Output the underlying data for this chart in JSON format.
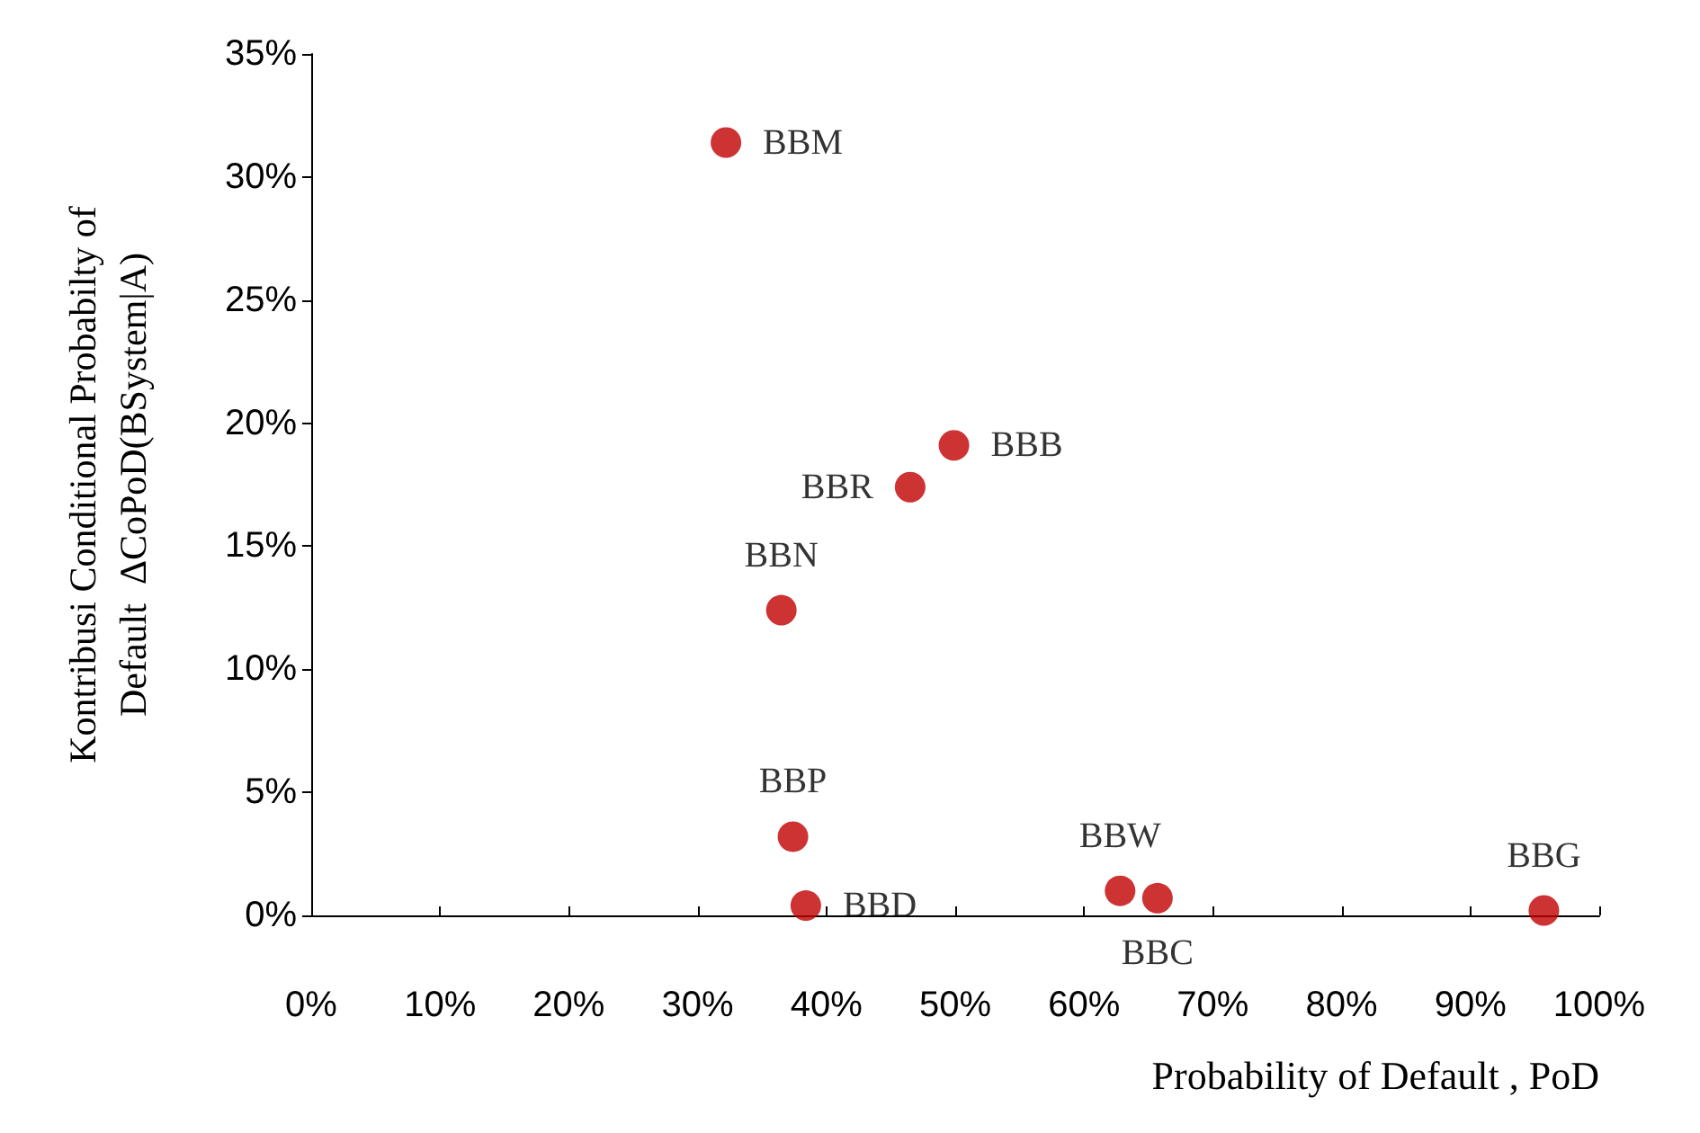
{
  "chart_data": {
    "type": "scatter",
    "xlabel": "Probability of Default , PoD",
    "ylabel": "Kontribusi Conditional Probabilty of\nDefault  ΔCoPoD(BSystem|A)",
    "x": [
      32.2,
      49.9,
      46.5,
      36.5,
      37.4,
      38.4,
      62.8,
      65.7,
      95.7
    ],
    "series": [
      {
        "color": "#c00000",
        "values": [
          31.4,
          19.1,
          17.4,
          12.4,
          3.2,
          0.4,
          1.0,
          0.7,
          0.2
        ]
      }
    ],
    "annotations": [
      {
        "text": "BBM",
        "x": 32.2,
        "y": 31.4
      },
      {
        "text": "BBB",
        "x": 49.9,
        "y": 19.1
      },
      {
        "text": "BBR",
        "x": 46.5,
        "y": 17.4
      },
      {
        "text": "BBN",
        "x": 36.5,
        "y": 12.4
      },
      {
        "text": "BBP",
        "x": 37.4,
        "y": 3.2
      },
      {
        "text": "BBD",
        "x": 38.4,
        "y": 0.4
      },
      {
        "text": "BBW",
        "x": 62.8,
        "y": 1.0
      },
      {
        "text": "BBC",
        "x": 65.7,
        "y": 0.7
      },
      {
        "text": "BBG",
        "x": 95.7,
        "y": 0.2
      }
    ],
    "xlim": [
      0,
      100
    ],
    "xticks": [
      {
        "value": 0,
        "label": "0%"
      },
      {
        "value": 10,
        "label": "10%"
      },
      {
        "value": 20,
        "label": "20%"
      },
      {
        "value": 30,
        "label": "30%"
      },
      {
        "value": 40,
        "label": "40%"
      },
      {
        "value": 50,
        "label": "50%"
      },
      {
        "value": 60,
        "label": "60%"
      },
      {
        "value": 70,
        "label": "70%"
      },
      {
        "value": 80,
        "label": "80%"
      },
      {
        "value": 90,
        "label": "90%"
      },
      {
        "value": 100,
        "label": "100%"
      }
    ],
    "ylim": [
      0,
      35
    ],
    "yticks": [
      {
        "value": 0,
        "label": "0%"
      },
      {
        "value": 5,
        "label": "5%"
      },
      {
        "value": 10,
        "label": "10%"
      },
      {
        "value": 15,
        "label": "15%"
      },
      {
        "value": 20,
        "label": "20%"
      },
      {
        "value": 25,
        "label": "25%"
      },
      {
        "value": 30,
        "label": "30%"
      },
      {
        "value": 35,
        "label": "35%"
      }
    ],
    "grid": false,
    "marker": "circle"
  }
}
